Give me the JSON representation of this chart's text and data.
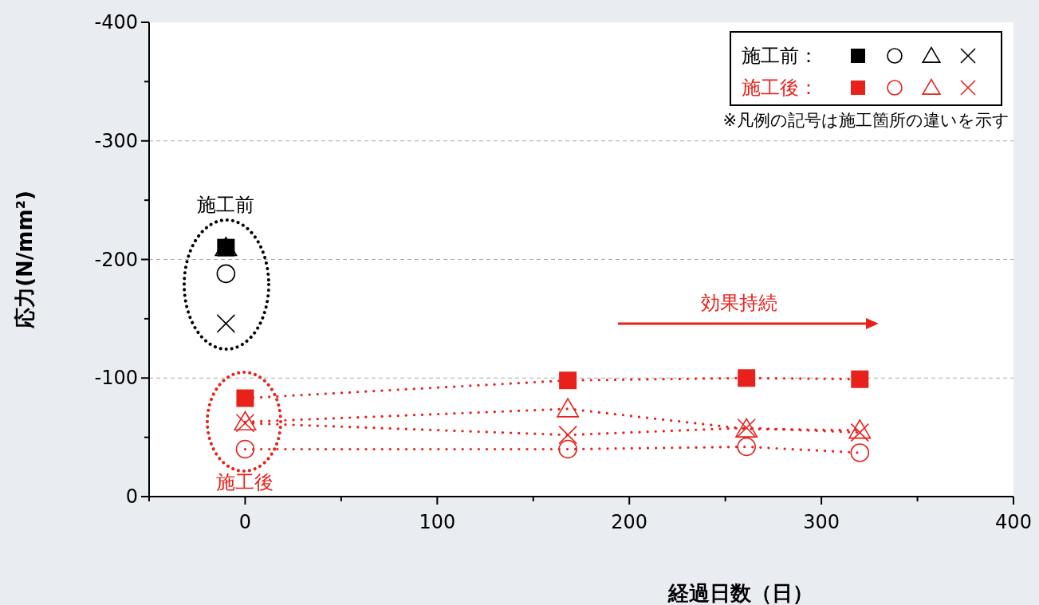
{
  "chart_data": {
    "type": "line",
    "xlabel": "経過日数（日）",
    "ylabel": "応力(N/mm²)",
    "xlim": [
      -50,
      400
    ],
    "xticks": [
      {
        "value": -50,
        "label": null
      },
      0,
      {
        "value": 50,
        "label": null
      },
      100,
      {
        "value": 150,
        "label": null
      },
      200,
      {
        "value": 250,
        "label": null
      },
      300,
      {
        "value": 350,
        "label": null
      },
      400
    ],
    "ylim": [
      0,
      -400
    ],
    "yticks": [
      0,
      {
        "value": -50,
        "label": null
      },
      -100,
      {
        "value": -150,
        "label": null
      },
      -200,
      {
        "value": -250,
        "label": null
      },
      -300,
      {
        "value": -350,
        "label": null
      },
      -400
    ],
    "grid": "y",
    "series": [
      {
        "type": "scatter",
        "marker": "square",
        "color": "#000000",
        "x": [
          -10
        ],
        "values": [
          -210
        ]
      },
      {
        "type": "scatter",
        "marker": "circle",
        "color": "#000000",
        "x": [
          -10
        ],
        "values": [
          -188
        ]
      },
      {
        "type": "scatter",
        "marker": "triangle",
        "color": "#000000",
        "x": [
          -10
        ],
        "values": [
          -210
        ]
      },
      {
        "type": "scatter",
        "marker": "cross",
        "color": "#000000",
        "x": [
          -10
        ],
        "values": [
          -146
        ]
      },
      {
        "type": "line",
        "marker": "square",
        "line_style": "dotted",
        "color": "#e8211b",
        "x": [
          0,
          168,
          261,
          320
        ],
        "values": [
          -83,
          -98,
          -100,
          -99
        ]
      },
      {
        "type": "line",
        "marker": "circle",
        "line_style": "dotted",
        "color": "#e8211b",
        "x": [
          0,
          168,
          261,
          320
        ],
        "values": [
          -40,
          -40,
          -42,
          -37
        ]
      },
      {
        "type": "line",
        "marker": "triangle",
        "line_style": "dotted",
        "color": "#e8211b",
        "x": [
          0,
          168,
          261,
          320
        ],
        "values": [
          -63,
          -74,
          -57,
          -56
        ]
      },
      {
        "type": "line",
        "marker": "cross",
        "line_style": "dotted",
        "color": "#e8211b",
        "x": [
          0,
          168,
          261,
          320
        ],
        "values": [
          -62,
          -52,
          -58,
          -54
        ]
      }
    ],
    "annotations": [
      "施工前：",
      "施工後：",
      "※凡例の記号は施工箇所の違いを示す",
      "施工前",
      "施工後",
      "効果持続"
    ]
  }
}
